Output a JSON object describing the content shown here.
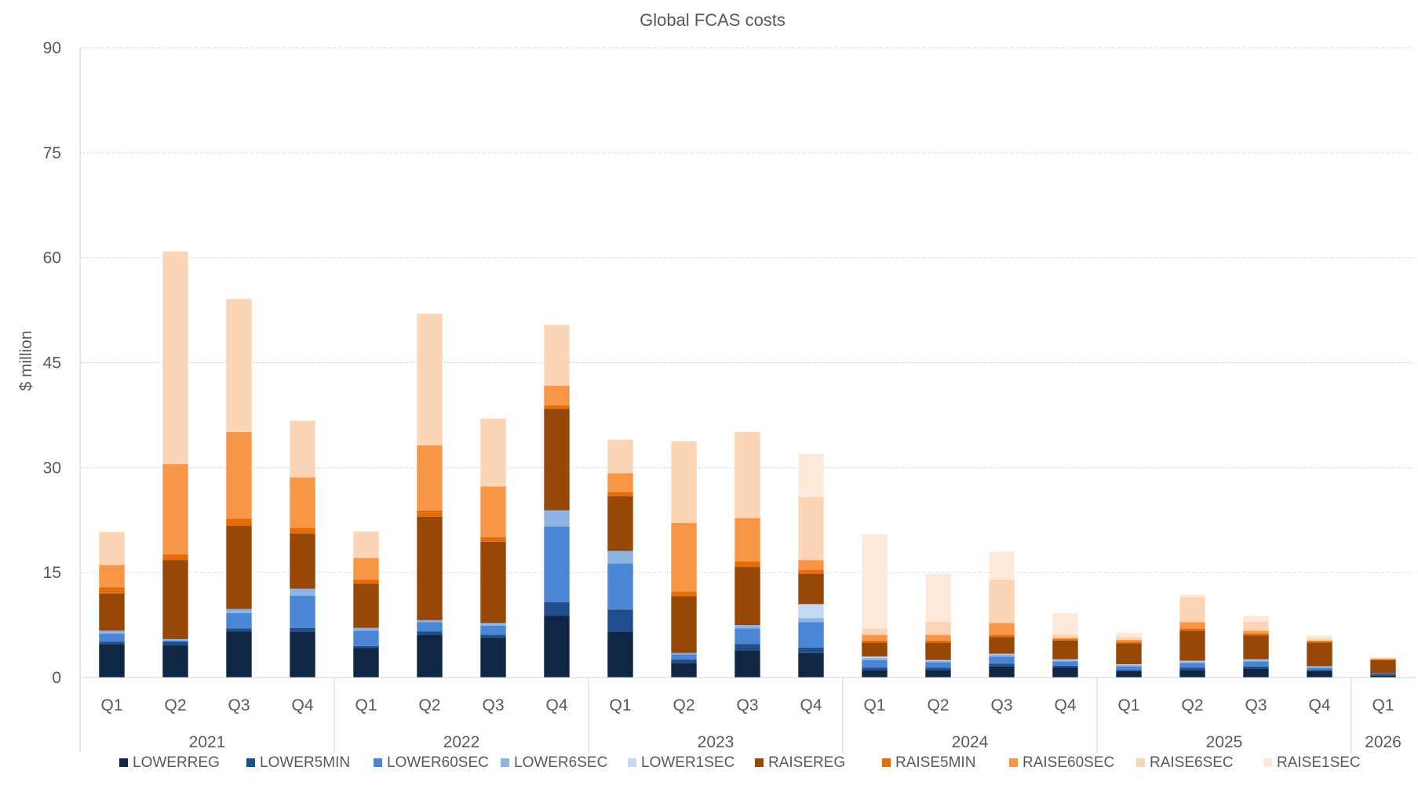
{
  "chart_data": {
    "type": "bar",
    "stacked": true,
    "title": "Global FCAS costs",
    "ylabel": "$ million",
    "xlabel": "",
    "ylim": [
      0,
      90
    ],
    "yticks": [
      "0",
      "15",
      "30",
      "45",
      "60",
      "75",
      "90"
    ],
    "grid": true,
    "legend_position": "bottom",
    "groups": [
      {
        "label": "2021",
        "quarters": [
          "Q1",
          "Q2",
          "Q3",
          "Q4"
        ]
      },
      {
        "label": "2022",
        "quarters": [
          "Q1",
          "Q2",
          "Q3",
          "Q4"
        ]
      },
      {
        "label": "2023",
        "quarters": [
          "Q1",
          "Q2",
          "Q3",
          "Q4"
        ]
      },
      {
        "label": "2024",
        "quarters": [
          "Q1",
          "Q2",
          "Q3",
          "Q4"
        ]
      },
      {
        "label": "2025",
        "quarters": [
          "Q1",
          "Q2",
          "Q3",
          "Q4"
        ]
      },
      {
        "label": "2026",
        "quarters": [
          "Q1"
        ]
      }
    ],
    "series": [
      {
        "name": "LOWERREG",
        "color": "#0f2644",
        "values": [
          4.8,
          4.6,
          6.6,
          6.5,
          4.2,
          6.1,
          5.7,
          8.8,
          6.5,
          2.1,
          3.9,
          3.5,
          1.1,
          1.1,
          1.6,
          1.4,
          0.9,
          1.1,
          1.3,
          0.9,
          0.3
        ]
      },
      {
        "name": "LOWER5MIN",
        "color": "#1f4e8c",
        "values": [
          0.3,
          0.5,
          0.4,
          0.6,
          0.3,
          0.5,
          0.4,
          2.0,
          3.2,
          0.5,
          0.9,
          0.8,
          0.3,
          0.3,
          0.4,
          0.3,
          0.2,
          0.3,
          0.3,
          0.2,
          0.2
        ]
      },
      {
        "name": "LOWER60SEC",
        "color": "#4a86d4",
        "values": [
          1.2,
          0.2,
          2.2,
          4.6,
          2.2,
          1.3,
          1.3,
          10.8,
          6.6,
          0.7,
          2.2,
          3.6,
          1.1,
          0.8,
          1.0,
          0.6,
          0.5,
          0.7,
          0.7,
          0.3,
          0.1
        ]
      },
      {
        "name": "LOWER6SEC",
        "color": "#8fb4e3",
        "values": [
          0.4,
          0.2,
          0.6,
          1.0,
          0.4,
          0.3,
          0.4,
          2.3,
          1.8,
          0.2,
          0.5,
          0.6,
          0.3,
          0.2,
          0.3,
          0.2,
          0.2,
          0.2,
          0.2,
          0.1,
          0.0
        ]
      },
      {
        "name": "LOWER1SEC",
        "color": "#c5d9f2",
        "values": [
          0,
          0,
          0,
          0,
          0,
          0,
          0,
          0,
          0,
          0,
          0,
          2.0,
          0.2,
          0.1,
          0.1,
          0.1,
          0.1,
          0.1,
          0.1,
          0.1,
          0.0
        ]
      },
      {
        "name": "RAISEREG",
        "color": "#974706",
        "values": [
          5.3,
          11.3,
          11.9,
          7.9,
          6.3,
          14.8,
          11.6,
          14.5,
          7.8,
          8.1,
          8.3,
          4.3,
          2.0,
          2.5,
          2.4,
          2.7,
          3.0,
          4.3,
          3.4,
          3.4,
          1.9
        ]
      },
      {
        "name": "RAISE5MIN",
        "color": "#e46c0a",
        "values": [
          0.9,
          0.8,
          1.0,
          0.8,
          0.6,
          0.9,
          0.7,
          0.5,
          0.6,
          0.7,
          0.8,
          0.6,
          0.3,
          0.3,
          0.3,
          0.2,
          0.2,
          0.3,
          0.3,
          0.2,
          0.1
        ]
      },
      {
        "name": "RAISE60SEC",
        "color": "#f79646",
        "values": [
          3.2,
          12.9,
          12.4,
          7.2,
          3.1,
          9.3,
          7.2,
          2.8,
          2.7,
          9.8,
          6.2,
          1.4,
          0.8,
          0.8,
          1.7,
          0.2,
          0.3,
          0.9,
          0.4,
          0.1,
          0.1
        ]
      },
      {
        "name": "RAISE6SEC",
        "color": "#fbd5b5",
        "values": [
          4.7,
          30.4,
          19.0,
          8.1,
          3.8,
          18.8,
          9.7,
          8.7,
          4.8,
          11.7,
          12.3,
          9.0,
          0.9,
          1.9,
          6.2,
          0.5,
          0.4,
          3.6,
          1.3,
          0.3,
          0.1
        ]
      },
      {
        "name": "RAISE1SEC",
        "color": "#fde9d9",
        "values": [
          0,
          0,
          0,
          0,
          0,
          0,
          0,
          0,
          0,
          0,
          0,
          6.2,
          13.5,
          6.8,
          4.0,
          3.0,
          0.6,
          0.4,
          0.8,
          0.4,
          0.1
        ]
      }
    ]
  }
}
